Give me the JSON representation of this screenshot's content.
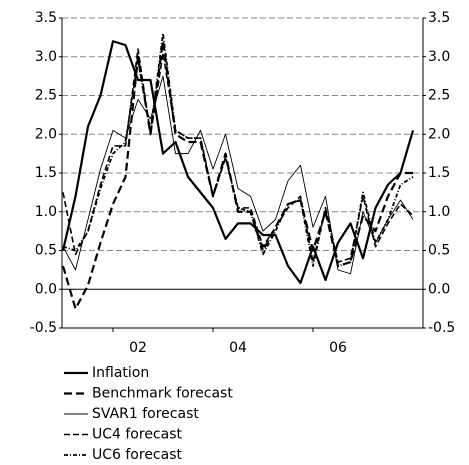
{
  "chart_data": {
    "type": "line",
    "categories": [
      null,
      null,
      null,
      null,
      null,
      null,
      "02",
      null,
      null,
      null,
      null,
      null,
      null,
      null,
      "04",
      null,
      null,
      null,
      null,
      null,
      null,
      null,
      "06",
      null,
      null,
      null,
      null,
      null,
      null
    ],
    "series": [
      {
        "name": "Inflation",
        "color": "#000000",
        "values": [
          0.5,
          1.2,
          2.1,
          2.5,
          3.2,
          3.15,
          2.7,
          2.7,
          1.75,
          1.9,
          1.45,
          1.25,
          1.05,
          0.65,
          0.85,
          0.85,
          0.7,
          0.7,
          0.3,
          0.08,
          0.55,
          0.12,
          0.6,
          0.85,
          0.4,
          1.05,
          1.35,
          1.5,
          2.05
        ]
      },
      {
        "name": "Benchmark forecast",
        "color": "#000000",
        "values": [
          0.3,
          -0.25,
          0.05,
          0.6,
          1.1,
          1.45,
          3.0,
          2.0,
          3.2,
          2.0,
          1.9,
          1.9,
          1.2,
          1.75,
          1.0,
          1.0,
          0.5,
          0.8,
          1.1,
          1.15,
          0.5,
          1.0,
          0.3,
          0.35,
          0.95,
          0.75,
          1.2,
          1.5,
          1.5
        ]
      },
      {
        "name": "SVAR1 forecast",
        "color": "#000000",
        "values": [
          0.55,
          0.25,
          0.9,
          1.55,
          2.05,
          1.95,
          2.45,
          2.2,
          2.75,
          1.75,
          1.75,
          2.05,
          1.55,
          2.0,
          1.3,
          1.2,
          0.75,
          0.9,
          1.4,
          1.6,
          0.8,
          1.2,
          0.25,
          0.2,
          1.0,
          0.6,
          0.9,
          1.15,
          0.9
        ]
      },
      {
        "name": "UC4 forecast",
        "color": "#000000",
        "values": [
          1.25,
          0.45,
          0.75,
          1.35,
          1.85,
          1.85,
          3.1,
          2.0,
          3.05,
          2.05,
          1.95,
          1.95,
          1.2,
          1.7,
          1.05,
          1.05,
          0.55,
          0.8,
          1.05,
          1.2,
          0.35,
          1.05,
          0.35,
          0.4,
          1.2,
          0.55,
          0.85,
          1.1,
          0.95
        ]
      },
      {
        "name": "UC6 forecast",
        "color": "#000000",
        "values": [
          0.55,
          0.5,
          0.75,
          1.3,
          1.75,
          1.9,
          2.95,
          2.05,
          3.3,
          2.05,
          1.95,
          1.95,
          1.2,
          1.7,
          1.05,
          1.0,
          0.45,
          0.75,
          1.1,
          1.15,
          0.3,
          1.05,
          0.3,
          0.35,
          1.25,
          0.6,
          0.9,
          1.35,
          1.45
        ]
      }
    ],
    "ylim": [
      -0.5,
      3.5
    ],
    "yticks": [
      -0.5,
      {
        "value": 0,
        "label": "0.0"
      },
      0.5,
      {
        "value": 1,
        "label": "1.0"
      },
      1.5,
      {
        "value": 2,
        "label": "2.0"
      },
      2.5,
      {
        "value": 3,
        "label": "3.0"
      },
      3.5
    ],
    "grid": true
  }
}
